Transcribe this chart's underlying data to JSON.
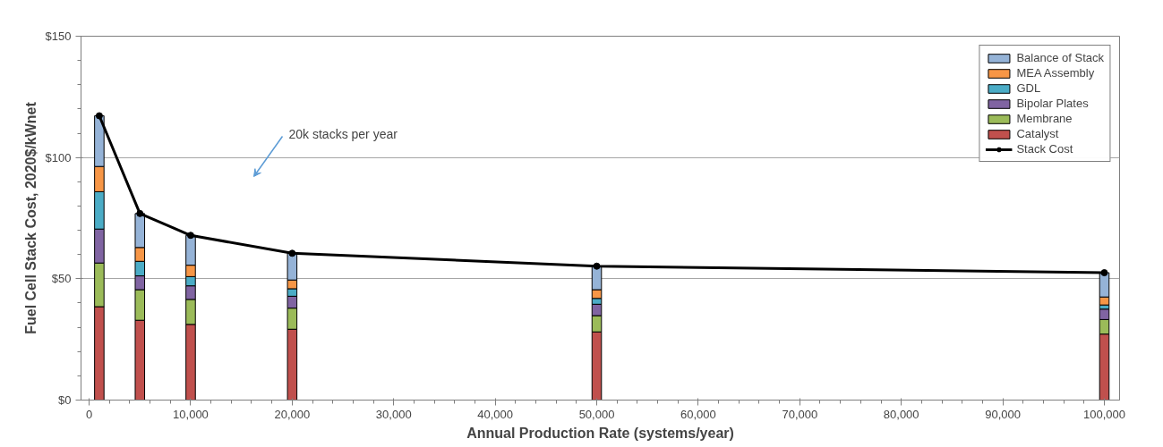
{
  "chart_data": {
    "type": "bar",
    "stacked": true,
    "xlabel": "Annual Production Rate (systems/year)",
    "ylabel": "Fuel Cell Stack Cost, 2020$/kWnet",
    "x": [
      1000,
      5000,
      10000,
      20000,
      50000,
      100000
    ],
    "series": [
      {
        "name": "Catalyst",
        "color": "#c0504d",
        "values": [
          38.5,
          32.9,
          31.2,
          29.2,
          28.1,
          27.2
        ]
      },
      {
        "name": "Membrane",
        "color": "#9bbb59",
        "values": [
          18.0,
          12.6,
          10.3,
          8.7,
          6.7,
          6.0
        ]
      },
      {
        "name": "Bipolar Plates",
        "color": "#8064a2",
        "values": [
          14.0,
          5.7,
          5.6,
          4.9,
          4.7,
          4.3
        ]
      },
      {
        "name": "GDL",
        "color": "#4bacc6",
        "values": [
          15.4,
          6.0,
          3.8,
          3.1,
          2.4,
          1.7
        ]
      },
      {
        "name": "MEA Assembly",
        "color": "#f79646",
        "values": [
          10.4,
          5.7,
          4.7,
          3.6,
          3.6,
          3.3
        ]
      },
      {
        "name": "Balance of Stack",
        "color": "#95b3d7",
        "values": [
          20.9,
          14.0,
          12.3,
          11.0,
          9.7,
          10.0
        ]
      },
      {
        "name": "Stack Cost",
        "type": "line",
        "color": "#000000",
        "marker": "circle",
        "values": [
          117.2,
          76.9,
          67.9,
          60.5,
          55.2,
          52.5
        ]
      }
    ],
    "xlim": [
      -800,
      101500
    ],
    "xticks": [
      0,
      {
        "value": 10000,
        "label": "10,000"
      },
      {
        "value": 20000,
        "label": "20,000"
      },
      {
        "value": 30000,
        "label": "30,000"
      },
      {
        "value": 40000,
        "label": "40,000"
      },
      {
        "value": 50000,
        "label": "50,000"
      },
      {
        "value": 60000,
        "label": "60,000"
      },
      {
        "value": 70000,
        "label": "70,000"
      },
      {
        "value": 80000,
        "label": "80,000"
      },
      {
        "value": 90000,
        "label": "90,000"
      },
      {
        "value": 100000,
        "label": "100,000"
      }
    ],
    "ylim": [
      0,
      150
    ],
    "yticks": [
      {
        "value": 0,
        "label": "$0"
      },
      {
        "value": 50,
        "label": "$50"
      },
      {
        "value": 100,
        "label": "$100"
      },
      {
        "value": 150,
        "label": "$150"
      }
    ],
    "grid": "y",
    "legend": "top right",
    "annotations": [
      "20k stacks per year"
    ]
  }
}
